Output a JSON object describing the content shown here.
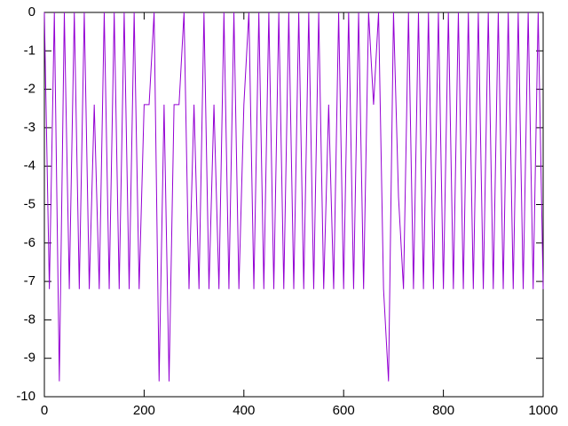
{
  "chart_data": {
    "type": "line",
    "color": "#9400d3",
    "x": [
      0,
      10,
      20,
      30,
      40,
      50,
      60,
      70,
      80,
      90,
      100,
      110,
      120,
      130,
      140,
      150,
      160,
      170,
      180,
      190,
      200,
      210,
      220,
      230,
      240,
      250,
      260,
      270,
      280,
      290,
      300,
      310,
      320,
      330,
      340,
      350,
      360,
      370,
      380,
      390,
      400,
      410,
      420,
      430,
      440,
      450,
      460,
      470,
      480,
      490,
      500,
      510,
      520,
      530,
      540,
      550,
      560,
      570,
      580,
      590,
      600,
      610,
      620,
      630,
      640,
      650,
      660,
      670,
      680,
      690,
      700,
      710,
      720,
      730,
      740,
      750,
      760,
      770,
      780,
      790,
      800,
      810,
      820,
      830,
      840,
      850,
      860,
      870,
      880,
      890,
      900,
      910,
      920,
      930,
      940,
      950,
      960,
      970,
      980,
      990,
      1000
    ],
    "values": [
      0,
      -7.2,
      0,
      -9.6,
      0,
      -7.2,
      0,
      -7.2,
      0,
      -7.2,
      -2.4,
      -7.2,
      0,
      -7.2,
      0,
      -7.2,
      0,
      -7.2,
      0,
      -7.2,
      -2.4,
      -2.4,
      0,
      -9.6,
      -2.4,
      -9.6,
      -2.4,
      -2.4,
      0,
      -7.2,
      -2.4,
      -7.2,
      0,
      -7.2,
      -2.4,
      -7.2,
      0,
      -7.2,
      0,
      -7.2,
      -2.4,
      0,
      -7.2,
      0,
      -7.2,
      0,
      -7.2,
      0,
      -7.2,
      0,
      -7.2,
      0,
      -7.2,
      0,
      -7.2,
      0,
      -7.2,
      -2.4,
      -7.2,
      0,
      -7.2,
      0,
      -7.2,
      0,
      -7.2,
      0,
      -2.4,
      0,
      -7.2,
      -9.6,
      0,
      -4.8,
      -7.2,
      0,
      -7.2,
      0,
      -7.2,
      0,
      -7.2,
      0,
      -7.2,
      0,
      -7.2,
      0,
      -7.2,
      0,
      -7.2,
      0,
      -7.2,
      0,
      -7.2,
      0,
      -7.2,
      0,
      -7.2,
      0,
      -7.2,
      0,
      -7.2,
      0,
      -7.2
    ],
    "xlim": [
      0,
      1000
    ],
    "xticks": [
      0,
      200,
      400,
      600,
      800,
      1000
    ],
    "ylim": [
      -10,
      0
    ],
    "yticks": [
      0,
      -1,
      -2,
      -3,
      -4,
      -5,
      -6,
      -7,
      -8,
      -9,
      -10
    ]
  }
}
